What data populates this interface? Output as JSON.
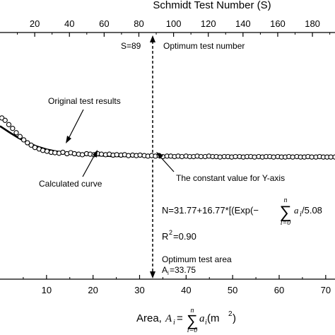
{
  "chart_data": {
    "type": "scatter",
    "title": "",
    "x_bottom": {
      "label_prefix": "Area, ",
      "label_var": "A",
      "label_sub": "i",
      "label_eq": " =",
      "label_sum_top": "n",
      "label_sum_bottom": "i=0",
      "label_term": "a",
      "label_term_sub": "i",
      "label_units": " (m",
      "label_units_sup": "2",
      "label_units_close": ")",
      "range": [
        0,
        72
      ],
      "ticks": [
        10,
        20,
        30,
        40,
        50,
        60,
        70
      ],
      "tick_labels": [
        "10",
        "20",
        "30",
        "40",
        "50",
        "60",
        "70"
      ]
    },
    "x_top": {
      "label": "Schmidt Test Number (S)",
      "range": [
        0,
        193
      ],
      "ticks": [
        20,
        40,
        60,
        80,
        100,
        120,
        140,
        160,
        180
      ],
      "tick_labels": [
        "20",
        "40",
        "60",
        "80",
        "100",
        "120",
        "140",
        "160",
        "180"
      ]
    },
    "y_axis": {
      "label": "",
      "range": [
        0,
        1
      ],
      "grid": false
    },
    "series": [
      {
        "marker": "open-circle",
        "x": [
          0.4,
          1.1,
          1.9,
          2.7,
          3.5,
          4.3,
          5.1,
          5.9,
          6.7,
          7.5,
          8.4,
          9.2,
          10.1,
          11.0,
          11.8,
          12.7,
          13.5,
          14.4,
          15.2,
          16.0,
          16.9,
          17.7,
          18.6,
          19.4,
          20.2,
          21.0,
          21.8,
          22.7,
          23.5,
          24.3,
          25.1,
          26.0,
          26.8,
          27.6,
          28.5,
          29.3,
          30.1,
          31.0,
          31.8,
          32.6,
          33.4,
          34.2,
          35.0,
          35.9,
          36.7,
          37.5,
          38.3,
          39.1,
          40.0,
          40.8,
          41.6,
          42.4,
          43.2,
          44.1,
          44.9,
          45.7,
          46.5,
          47.3,
          48.2,
          49.0,
          49.8,
          50.6,
          51.5,
          52.3,
          53.1,
          53.9,
          54.7,
          55.6,
          56.4,
          57.2,
          58.0,
          58.8,
          59.7,
          60.5,
          61.3,
          62.1,
          62.9,
          63.8,
          64.6,
          65.4,
          66.2,
          67.0,
          67.9,
          68.7,
          69.5,
          70.3,
          71.1,
          72.0
        ],
        "y": [
          41.5,
          41.0,
          40.1,
          39.3,
          38.4,
          37.6,
          36.9,
          36.3,
          35.8,
          35.3,
          35.0,
          34.7,
          34.5,
          34.3,
          34.2,
          34.1,
          34.3,
          34.0,
          34.2,
          34.0,
          33.9,
          33.8,
          34.0,
          33.9,
          33.8,
          34.0,
          33.9,
          33.8,
          33.9,
          33.7,
          33.8,
          33.7,
          33.8,
          33.6,
          33.7,
          33.6,
          33.7,
          33.6,
          33.5,
          33.6,
          33.5,
          33.6,
          33.4,
          33.5,
          33.5,
          33.4,
          33.5,
          33.4,
          33.5,
          33.4,
          33.4,
          33.5,
          33.4,
          33.4,
          33.5,
          33.4,
          33.4,
          33.3,
          33.4,
          33.4,
          33.3,
          33.4,
          33.4,
          33.3,
          33.4,
          33.4,
          33.3,
          33.4,
          33.3,
          33.4,
          33.4,
          33.3,
          33.4,
          33.3,
          33.3,
          33.4,
          33.3,
          33.4,
          33.3,
          33.3,
          33.4,
          33.3,
          33.3,
          33.4,
          33.3,
          33.3,
          33.3,
          33.3
        ]
      },
      {
        "marker": "line",
        "x": [
          0,
          2,
          4,
          6,
          8,
          10,
          12,
          14,
          16,
          18,
          20,
          22,
          24,
          26,
          28,
          30,
          32,
          34,
          36,
          38,
          40,
          44,
          48,
          52,
          56,
          60,
          64,
          68,
          72
        ],
        "y": [
          39.8,
          38.5,
          37.3,
          36.3,
          35.5,
          34.9,
          34.5,
          34.2,
          34.0,
          33.8,
          33.7,
          33.6,
          33.5,
          33.5,
          33.5,
          33.5,
          33.5,
          33.4,
          33.4,
          33.4,
          33.4,
          33.4,
          33.4,
          33.4,
          33.4,
          33.4,
          33.4,
          33.4,
          33.4
        ]
      }
    ],
    "y_data_range": [
      28,
      44
    ],
    "vline_x": 33.75,
    "annotations": {
      "s_label": "S=89",
      "optimum_test_number": "Optimum test number",
      "original_results": "Original test results",
      "calculated_curve": "Calculated curve",
      "constant_value": "The constant value for Y-axis",
      "eq_prefix": "N=31.77+16.77*[(Exp(−",
      "eq_sum_top": "n",
      "eq_sum_bottom": "i=0",
      "eq_term": "a",
      "eq_term_sub": "i",
      "eq_suffix": " /5.08",
      "r2_prefix": "R",
      "r2_sup": "2",
      "r2_suffix": "=0.90",
      "optimum_area_label": "Optimum test area",
      "optimum_area_value_var": "A",
      "optimum_area_value_sub": "i",
      "optimum_area_value": "=33.75"
    }
  }
}
